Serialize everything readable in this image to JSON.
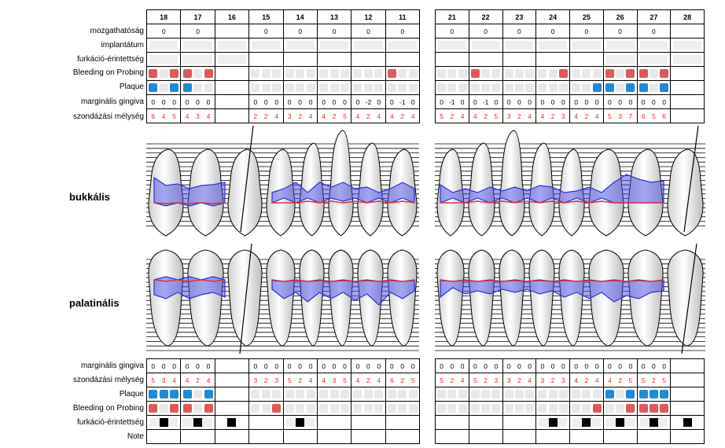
{
  "upper_chart": {
    "teeth_left": [
      "18",
      "17",
      "16",
      "15",
      "14",
      "13",
      "12",
      "11"
    ],
    "teeth_right": [
      "21",
      "22",
      "23",
      "24",
      "25",
      "26",
      "27",
      "28"
    ],
    "rows": {
      "mobility": {
        "label": "mozgathatóság",
        "left": [
          "0",
          "0",
          "",
          "0",
          "0",
          "0",
          "0",
          "0"
        ],
        "right": [
          "0",
          "0",
          "0",
          "0",
          "0",
          "0",
          "0",
          ""
        ]
      },
      "implant": {
        "label": "implantátum"
      },
      "furcation": {
        "label": "furkáció-érintettség"
      },
      "bleeding": {
        "label": "Bleeding on Probing"
      },
      "plaque": {
        "label": "Plaque"
      },
      "gingival_margin": {
        "label": "marginális gingiva",
        "left": [
          [
            "0",
            "0",
            "0"
          ],
          [
            "0",
            "0",
            "0"
          ],
          [
            "",
            "",
            ""
          ],
          [
            "0",
            "0",
            "0"
          ],
          [
            "0",
            "0",
            "0"
          ],
          [
            "0",
            "0",
            "0"
          ],
          [
            "0",
            "-2",
            "0"
          ],
          [
            "0",
            "-1",
            "0"
          ]
        ],
        "right": [
          [
            "0",
            "-1",
            "0"
          ],
          [
            "0",
            "-1",
            "0"
          ],
          [
            "0",
            "0",
            "0"
          ],
          [
            "0",
            "0",
            "0"
          ],
          [
            "0",
            "0",
            "0"
          ],
          [
            "0",
            "0",
            "0"
          ],
          [
            "0",
            "0",
            "0"
          ],
          [
            "",
            "",
            ""
          ]
        ]
      },
      "probing_depth": {
        "label": "szondázási mélység",
        "left": [
          [
            "6",
            "4",
            "5"
          ],
          [
            "4",
            "3",
            "4"
          ],
          [
            "",
            "",
            ""
          ],
          [
            "2",
            "2",
            "4"
          ],
          [
            "3",
            "2",
            "4"
          ],
          [
            "4",
            "2",
            "5"
          ],
          [
            "4",
            "2",
            "4"
          ],
          [
            "4",
            "2",
            "4"
          ]
        ],
        "right": [
          [
            "5",
            "2",
            "4"
          ],
          [
            "4",
            "2",
            "5"
          ],
          [
            "3",
            "2",
            "4"
          ],
          [
            "4",
            "2",
            "3"
          ],
          [
            "4",
            "2",
            "4"
          ],
          [
            "5",
            "3",
            "7"
          ],
          [
            "6",
            "5",
            "6"
          ],
          [
            "",
            "",
            ""
          ]
        ]
      }
    }
  },
  "lower_chart": {
    "rows": {
      "gingival_margin": {
        "label": "marginális gingiva",
        "left": [
          [
            "0",
            "0",
            "0"
          ],
          [
            "0",
            "0",
            "0"
          ],
          [
            "",
            "",
            ""
          ],
          [
            "0",
            "0",
            "0"
          ],
          [
            "0",
            "0",
            "0"
          ],
          [
            "0",
            "0",
            "0"
          ],
          [
            "0",
            "0",
            "0"
          ],
          [
            "0",
            "0",
            "0"
          ]
        ],
        "right": [
          [
            "0",
            "0",
            "0"
          ],
          [
            "0",
            "0",
            "0"
          ],
          [
            "0",
            "0",
            "0"
          ],
          [
            "0",
            "0",
            "0"
          ],
          [
            "0",
            "0",
            "0"
          ],
          [
            "0",
            "0",
            "0"
          ],
          [
            "0",
            "0",
            "0"
          ],
          [
            "",
            "",
            ""
          ]
        ]
      },
      "probing_depth": {
        "label": "szondázási mélység",
        "left": [
          [
            "5",
            "3",
            "4"
          ],
          [
            "4",
            "2",
            "4"
          ],
          [
            "",
            "",
            ""
          ],
          [
            "3",
            "2",
            "3"
          ],
          [
            "5",
            "2",
            "4"
          ],
          [
            "4",
            "3",
            "5"
          ],
          [
            "4",
            "2",
            "4"
          ],
          [
            "6",
            "2",
            "5"
          ]
        ],
        "right": [
          [
            "5",
            "2",
            "4"
          ],
          [
            "5",
            "2",
            "3"
          ],
          [
            "3",
            "2",
            "4"
          ],
          [
            "3",
            "2",
            "3"
          ],
          [
            "4",
            "2",
            "4"
          ],
          [
            "4",
            "2",
            "5"
          ],
          [
            "5",
            "2",
            "5"
          ],
          [
            "",
            "",
            ""
          ]
        ]
      },
      "plaque": {
        "label": "Plaque"
      },
      "bleeding": {
        "label": "Bleeding on Probing"
      },
      "furcation": {
        "label": "furkáció-érintettség"
      },
      "note": {
        "label": "Note"
      }
    }
  },
  "buccal_label": "bukkális",
  "palatal_label": "palatinális",
  "colors": {
    "bleeding": "#e05858",
    "plaque": "#1f8ad6",
    "pocket_fill": "#4a4ee8",
    "margin_line": "#e0303a",
    "empty_cell": "#e8e8e8"
  }
}
